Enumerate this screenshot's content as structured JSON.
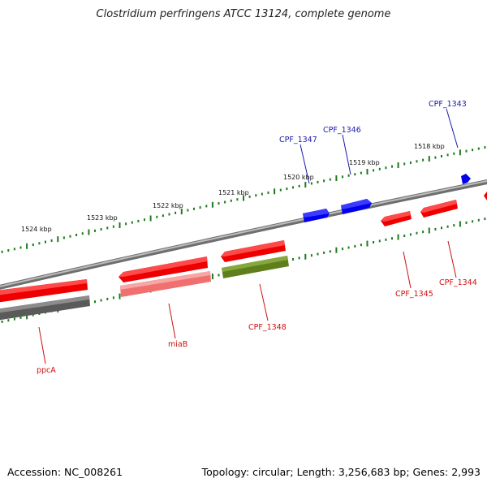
{
  "title": "Clostridium perfringens ATCC 13124, complete genome",
  "footer": {
    "accession": "Accession: NC_008261",
    "summary": "Topology: circular; Length: 3,256,683 bp; Genes: 2,993"
  },
  "colors": {
    "backbone": "#7f7f7f",
    "tick": "#1e7a1e",
    "forward_gene": "#0000ee",
    "reverse_gene": "#ee0000",
    "rna": "#f08080",
    "pseudo": "#666666",
    "other": "#6b8e23",
    "label_blue": "#1a1aaa",
    "label_red": "#cc1111"
  },
  "scale": {
    "kbp_labels": [
      "1524 kbp",
      "1523 kbp",
      "1522 kbp",
      "1521 kbp",
      "1520 kbp",
      "1519 kbp",
      "1518 kbp"
    ]
  },
  "gene_labels": [
    {
      "id": "CPF_1343",
      "text": "CPF_1343",
      "color": "blue"
    },
    {
      "id": "CPF_1346",
      "text": "CPF_1346",
      "color": "blue"
    },
    {
      "id": "CPF_1347",
      "text": "CPF_1347",
      "color": "blue"
    },
    {
      "id": "CPF_1345",
      "text": "CPF_1345",
      "color": "red"
    },
    {
      "id": "CPF_1344",
      "text": "CPF_1344",
      "color": "red"
    },
    {
      "id": "CPF_1348",
      "text": "CPF_1348",
      "color": "red"
    },
    {
      "id": "miaB",
      "text": "miaB",
      "color": "red"
    },
    {
      "id": "ppcA",
      "text": "ppcA",
      "color": "red"
    }
  ]
}
